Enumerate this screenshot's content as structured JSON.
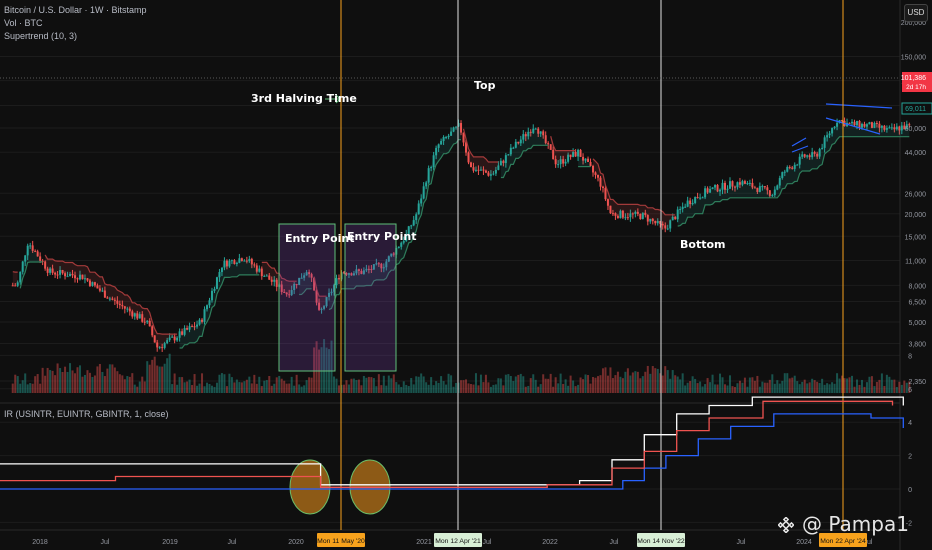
{
  "header": {
    "symbol_line": "Bitcoin / U.S. Dollar · 1W · Bitstamp",
    "vol_line": "Vol · BTC",
    "supertrend_line": "Supertrend (10, 3)",
    "currency_button": "USD"
  },
  "indicator": {
    "label": "IR (USINTR, EUINTR, GBINTR, 1, close)"
  },
  "annotations": {
    "halving": "3rd Halving Time",
    "entry1": "Entry Point",
    "entry2": "Entry Point",
    "top": "Top",
    "bottom": "Bottom",
    "watermark": "@ Pampa1"
  },
  "price_axis": {
    "ticks": [
      "150,000",
      "110,000",
      "80,000",
      "60,000",
      "44,000",
      "26,000",
      "20,000",
      "15,000",
      "11,000",
      "8,000",
      "6,500",
      "5,000",
      "3,800",
      "2,350"
    ],
    "top_tick": "200,000",
    "last_price": "101,386",
    "countdown": "2d 17h",
    "marker_price": "69,011"
  },
  "ir_axis": {
    "ticks": [
      "8",
      "6",
      "4",
      "2",
      "0",
      "-2"
    ]
  },
  "time_axis": {
    "ticks": [
      "2018",
      "Jul",
      "2019",
      "Jul",
      "2020",
      "2021",
      "Jul",
      "2022",
      "Jul",
      "Jul",
      "2024",
      "Jul"
    ],
    "markers": [
      {
        "label": "Mon 11 May '20",
        "color": "#f7a21c"
      },
      {
        "label": "Mon 12 Apr '21",
        "color": "#d8efd6"
      },
      {
        "label": "Mon 14 Nov '22",
        "color": "#d8efd6"
      },
      {
        "label": "Mon 22 Apr '24",
        "color": "#f7a21c"
      }
    ]
  },
  "colors": {
    "up": "#26a69a",
    "down": "#ef5350",
    "halving_line": "#f7a21c",
    "cycle_line": "#e0e0e0",
    "us_rate": "#ffffff",
    "eu_rate": "#2962ff",
    "gb_rate": "#ef5350"
  },
  "chart_data": {
    "type": "line",
    "title": "Bitcoin / U.S. Dollar · 1W · Bitstamp",
    "price_scale": "log",
    "series": [
      {
        "name": "BTC close (weekly, approx.)",
        "x": [
          "2017-11",
          "2017-12",
          "2018-02",
          "2018-05",
          "2018-08",
          "2018-11",
          "2018-12",
          "2019-04",
          "2019-06",
          "2019-08",
          "2019-10",
          "2019-12",
          "2020-02",
          "2020-03",
          "2020-05",
          "2020-07",
          "2020-09",
          "2020-11",
          "2020-12",
          "2021-01",
          "2021-02",
          "2021-04",
          "2021-05",
          "2021-07",
          "2021-09",
          "2021-11",
          "2022-01",
          "2022-03",
          "2022-05",
          "2022-06",
          "2022-09",
          "2022-11",
          "2023-01",
          "2023-03",
          "2023-06",
          "2023-09",
          "2023-10",
          "2023-12",
          "2024-01",
          "2024-03",
          "2024-04",
          "2024-06",
          "2024-08",
          "2024-09"
        ],
        "values": [
          8000,
          14000,
          9500,
          9000,
          6500,
          5000,
          3600,
          5000,
          10500,
          11500,
          9000,
          7200,
          10000,
          5500,
          9500,
          9500,
          10500,
          15000,
          20000,
          33000,
          48000,
          62000,
          36000,
          33000,
          47000,
          63000,
          38000,
          44000,
          30000,
          20000,
          19500,
          16500,
          23000,
          27000,
          30000,
          26000,
          34000,
          42000,
          42000,
          67000,
          63000,
          62000,
          58000,
          61000
        ]
      },
      {
        "name": "USINTR",
        "x": [
          "2018-01",
          "2020-03",
          "2022-03",
          "2022-06",
          "2022-09",
          "2022-12",
          "2023-03",
          "2023-07",
          "2024-07",
          "2024-09"
        ],
        "values": [
          1.5,
          0.25,
          0.5,
          1.75,
          3.25,
          4.5,
          5.0,
          5.5,
          5.5,
          5.0
        ]
      },
      {
        "name": "EUINTR",
        "x": [
          "2018-01",
          "2022-07",
          "2022-09",
          "2022-11",
          "2023-02",
          "2023-05",
          "2023-09",
          "2024-06",
          "2024-09"
        ],
        "values": [
          0,
          0.5,
          1.25,
          2.0,
          3.0,
          3.75,
          4.5,
          4.25,
          3.65
        ]
      },
      {
        "name": "GBINTR",
        "x": [
          "2018-01",
          "2018-08",
          "2020-03",
          "2021-12",
          "2022-06",
          "2022-09",
          "2022-12",
          "2023-03",
          "2023-08",
          "2024-08"
        ],
        "values": [
          0.5,
          0.75,
          0.1,
          0.25,
          1.25,
          2.25,
          3.5,
          4.25,
          5.25,
          5.0
        ]
      }
    ],
    "ir_ylim": [
      -2,
      8
    ],
    "grid": true
  }
}
